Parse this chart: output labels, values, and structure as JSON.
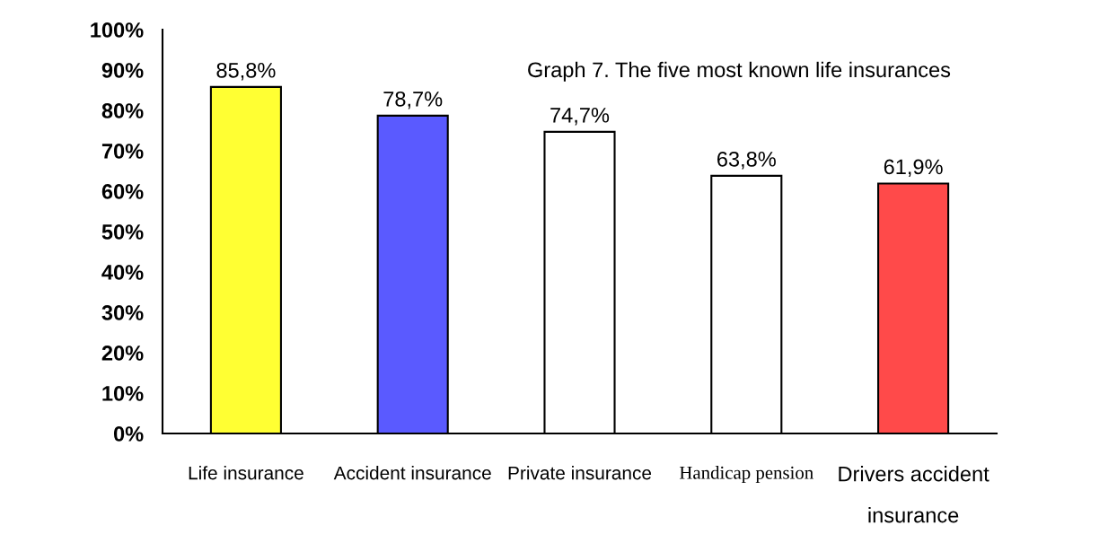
{
  "chart_data": {
    "type": "bar",
    "title": "Graph 7. The five most known life insurances",
    "categories": [
      "Life insurance",
      "Accident insurance",
      "Private insurance",
      "Handicap pension",
      "Drivers accident\ninsurance"
    ],
    "values": [
      85.8,
      78.7,
      74.7,
      63.8,
      61.9
    ],
    "value_labels": [
      "85,8%",
      "78,7%",
      "74,7%",
      "63,8%",
      "61,9%"
    ],
    "colors": [
      "#ffff33",
      "#5a5aff",
      "#ffffff",
      "#ffffff",
      "#ff4a4a"
    ],
    "ylim": [
      0,
      100
    ],
    "yticks": [
      {
        "value": 0,
        "label": "0%"
      },
      {
        "value": 10,
        "label": "10%"
      },
      {
        "value": 20,
        "label": "20%"
      },
      {
        "value": 30,
        "label": "30%"
      },
      {
        "value": 40,
        "label": "40%"
      },
      {
        "value": 50,
        "label": "50%"
      },
      {
        "value": 60,
        "label": "60%"
      },
      {
        "value": 70,
        "label": "70%"
      },
      {
        "value": 80,
        "label": "80%"
      },
      {
        "value": 90,
        "label": "90%"
      },
      {
        "value": 100,
        "label": "100%"
      }
    ]
  }
}
